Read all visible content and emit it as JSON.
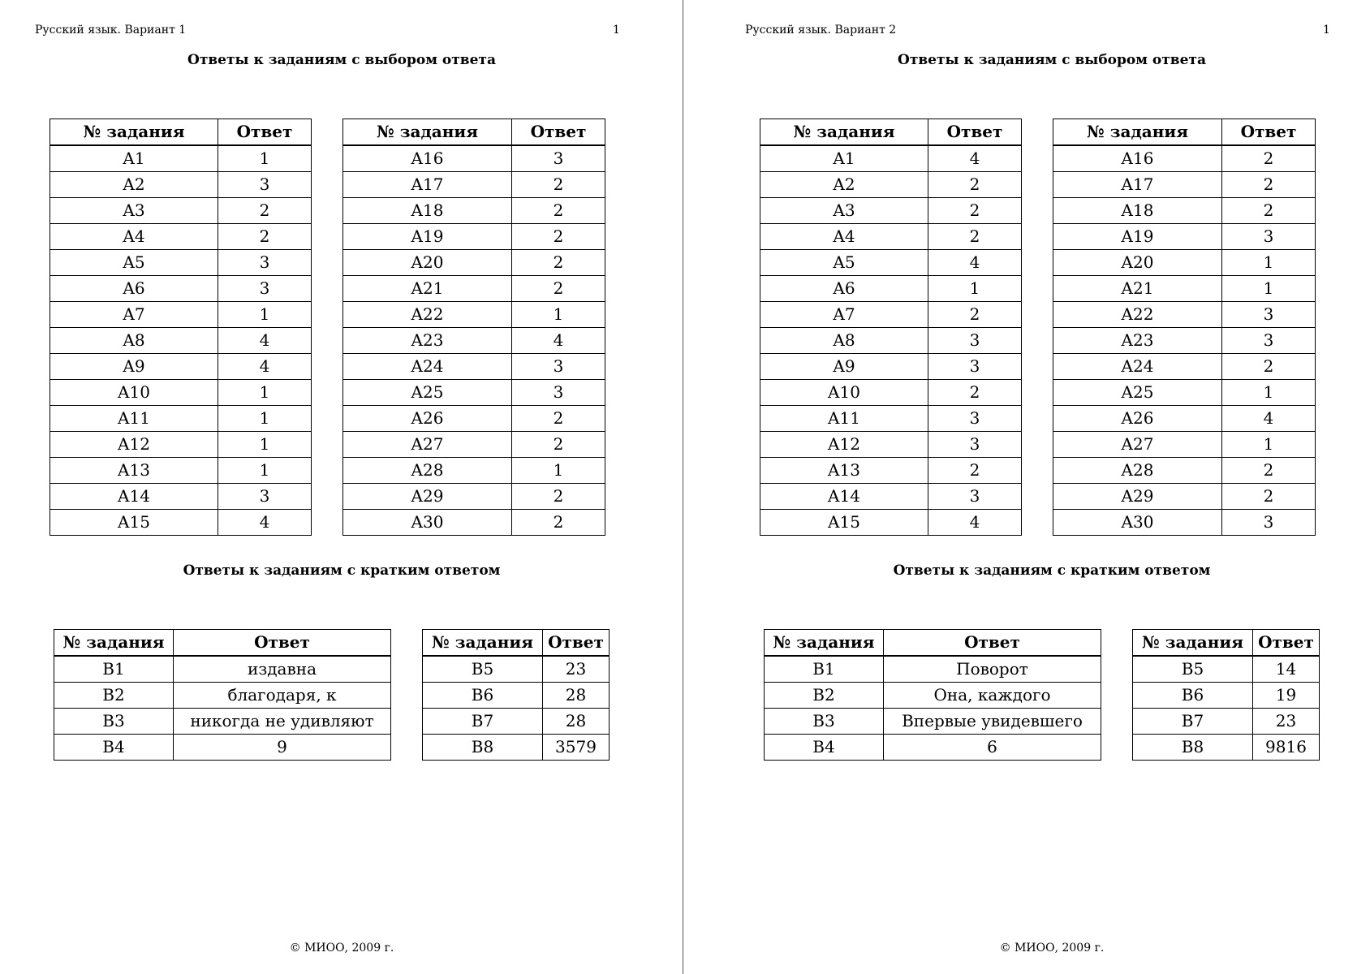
{
  "pages": [
    {
      "header": "Русский язык. Вариант 1",
      "page_number": "1",
      "section_a_title": "Ответы к заданиям с выбором ответа",
      "section_b_title": "Ответы к заданиям с кратким ответом",
      "footer": "© МИОО, 2009 г.",
      "columns": [
        "№ задания",
        "Ответ"
      ],
      "a_left": [
        [
          "A1",
          "1"
        ],
        [
          "A2",
          "3"
        ],
        [
          "A3",
          "2"
        ],
        [
          "A4",
          "2"
        ],
        [
          "A5",
          "3"
        ],
        [
          "A6",
          "3"
        ],
        [
          "A7",
          "1"
        ],
        [
          "A8",
          "4"
        ],
        [
          "A9",
          "4"
        ],
        [
          "A10",
          "1"
        ],
        [
          "A11",
          "1"
        ],
        [
          "A12",
          "1"
        ],
        [
          "A13",
          "1"
        ],
        [
          "A14",
          "3"
        ],
        [
          "A15",
          "4"
        ]
      ],
      "a_right": [
        [
          "A16",
          "3"
        ],
        [
          "A17",
          "2"
        ],
        [
          "A18",
          "2"
        ],
        [
          "A19",
          "2"
        ],
        [
          "A20",
          "2"
        ],
        [
          "A21",
          "2"
        ],
        [
          "A22",
          "1"
        ],
        [
          "A23",
          "4"
        ],
        [
          "A24",
          "3"
        ],
        [
          "A25",
          "3"
        ],
        [
          "A26",
          "2"
        ],
        [
          "A27",
          "2"
        ],
        [
          "A28",
          "1"
        ],
        [
          "A29",
          "2"
        ],
        [
          "A30",
          "2"
        ]
      ],
      "b_left": [
        [
          "B1",
          "издавна"
        ],
        [
          "B2",
          "благодаря, к"
        ],
        [
          "B3",
          "никогда не удивляют"
        ],
        [
          "B4",
          "9"
        ]
      ],
      "b_right": [
        [
          "B5",
          "23"
        ],
        [
          "B6",
          "28"
        ],
        [
          "B7",
          "28"
        ],
        [
          "B8",
          "3579"
        ]
      ]
    },
    {
      "header": "Русский язык. Вариант 2",
      "page_number": "1",
      "section_a_title": "Ответы к заданиям с выбором ответа",
      "section_b_title": "Ответы к заданиям с кратким ответом",
      "footer": "© МИОО, 2009 г.",
      "columns": [
        "№ задания",
        "Ответ"
      ],
      "a_left": [
        [
          "A1",
          "4"
        ],
        [
          "A2",
          "2"
        ],
        [
          "A3",
          "2"
        ],
        [
          "A4",
          "2"
        ],
        [
          "A5",
          "4"
        ],
        [
          "A6",
          "1"
        ],
        [
          "A7",
          "2"
        ],
        [
          "A8",
          "3"
        ],
        [
          "A9",
          "3"
        ],
        [
          "A10",
          "2"
        ],
        [
          "A11",
          "3"
        ],
        [
          "A12",
          "3"
        ],
        [
          "A13",
          "2"
        ],
        [
          "A14",
          "3"
        ],
        [
          "A15",
          "4"
        ]
      ],
      "a_right": [
        [
          "A16",
          "2"
        ],
        [
          "A17",
          "2"
        ],
        [
          "A18",
          "2"
        ],
        [
          "A19",
          "3"
        ],
        [
          "A20",
          "1"
        ],
        [
          "A21",
          "1"
        ],
        [
          "A22",
          "3"
        ],
        [
          "A23",
          "3"
        ],
        [
          "A24",
          "2"
        ],
        [
          "A25",
          "1"
        ],
        [
          "A26",
          "4"
        ],
        [
          "A27",
          "1"
        ],
        [
          "A28",
          "2"
        ],
        [
          "A29",
          "2"
        ],
        [
          "A30",
          "3"
        ]
      ],
      "b_left": [
        [
          "B1",
          "Поворот"
        ],
        [
          "B2",
          "Она, каждого"
        ],
        [
          "B3",
          "Впервые увидевшего"
        ],
        [
          "B4",
          "6"
        ]
      ],
      "b_right": [
        [
          "B5",
          "14"
        ],
        [
          "B6",
          "19"
        ],
        [
          "B7",
          "23"
        ],
        [
          "B8",
          "9816"
        ]
      ]
    }
  ]
}
